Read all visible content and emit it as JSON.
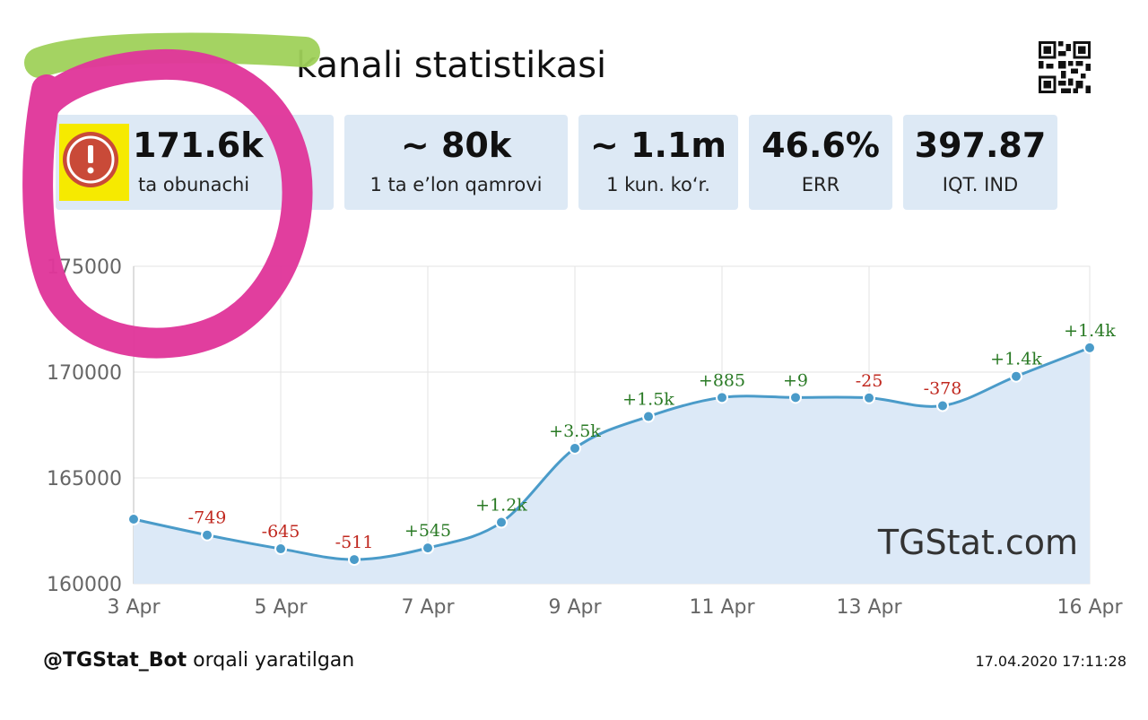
{
  "header": {
    "title": "kanali statistikasi"
  },
  "stats": [
    {
      "value": "171.6k",
      "label": "ta obunachi"
    },
    {
      "value": "~ 80k",
      "label": "1 ta e’lon qamrovi"
    },
    {
      "value": "~ 1.1m",
      "label": "1 kun. ko‘r."
    },
    {
      "value": "46.6%",
      "label": "ERR"
    },
    {
      "value": "397.87",
      "label": "IQT. IND"
    }
  ],
  "colors": {
    "line": "#4a9bc9",
    "fill": "#dce9f7",
    "positive": "#2a7a25",
    "negative": "#c0281f",
    "highlight_circle": "#e0369a",
    "highlight_bar": "#9fd15a",
    "card_bg": "#dde9f5"
  },
  "chart_data": {
    "type": "area",
    "x": [
      "3 Apr",
      "4 Apr",
      "5 Apr",
      "6 Apr",
      "7 Apr",
      "8 Apr",
      "9 Apr",
      "10 Apr",
      "11 Apr",
      "12 Apr",
      "13 Apr",
      "14 Apr",
      "15 Apr",
      "16 Apr"
    ],
    "x_tick_labels": [
      "3 Apr",
      "5 Apr",
      "7 Apr",
      "9 Apr",
      "11 Apr",
      "13 Apr",
      "16 Apr"
    ],
    "values": [
      163050,
      162300,
      161650,
      161140,
      161690,
      162900,
      166400,
      167900,
      168800,
      168800,
      168780,
      168410,
      169800,
      171150
    ],
    "changes": [
      null,
      "-749",
      "-645",
      "-511",
      "+545",
      "+1.2k",
      "+3.5k",
      "+1.5k",
      "+885",
      "+9",
      "-25",
      "-378",
      "+1.4k",
      "+1.4k"
    ],
    "y_ticks": [
      "175000",
      "170000",
      "165000",
      "160000"
    ],
    "ylim": [
      160000,
      175000
    ],
    "grid": true,
    "watermark": "TGStat.com"
  },
  "footer": {
    "bot": "@TGStat_Bot",
    "suffix": " orqali yaratilgan",
    "timestamp": "17.04.2020 17:11:28"
  }
}
